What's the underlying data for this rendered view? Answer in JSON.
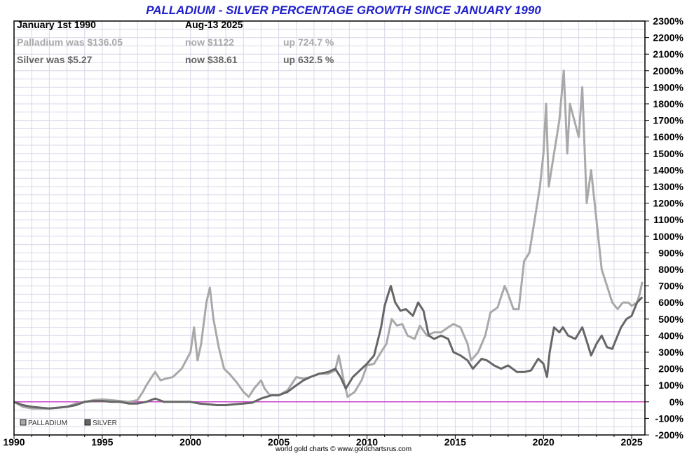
{
  "header": {
    "title": "PALLADIUM - SILVER PERCENTAGE GROWTH SINCE JANUARY 1990",
    "start_label": "January 1st 1990",
    "end_label": "Aug-13  2025",
    "rows": [
      {
        "was": "Palladium was $136.05",
        "now": "now $1122",
        "up": "up 724.7 %",
        "color": "#a9a9a9"
      },
      {
        "was": "Silver was $5.27",
        "now": "now $38.61",
        "up": "up 632.5 %",
        "color": "#666666"
      }
    ]
  },
  "credit": "world gold charts © www.goldchartsrus.com",
  "colors": {
    "title": "#1f1fcc",
    "palladium": "#a9a9a9",
    "silver": "#666666",
    "zero_line": "#cc44cc",
    "grid": "#d8d8ea",
    "frame": "#000000"
  },
  "chart_data": {
    "type": "line",
    "title": "PALLADIUM - SILVER PERCENTAGE GROWTH SINCE JANUARY 1990",
    "xlabel": "",
    "ylabel": "",
    "xlim": [
      1990,
      2025.75
    ],
    "ylim": [
      -200,
      2300
    ],
    "x_ticks": [
      {
        "value": 1990,
        "label": "1990"
      },
      {
        "value": 1995,
        "label": "1995"
      },
      {
        "value": 2000,
        "label": "2000"
      },
      {
        "value": 2005,
        "label": "2005"
      },
      {
        "value": 2010,
        "label": "2010"
      },
      {
        "value": 2015,
        "label": "2015"
      },
      {
        "value": 2020,
        "label": "2020"
      },
      {
        "value": 2025,
        "label": "2025"
      }
    ],
    "y_ticks": [
      {
        "value": 2300,
        "label": "2300%"
      },
      {
        "value": 2200,
        "label": "2200%"
      },
      {
        "value": 2100,
        "label": "2100%"
      },
      {
        "value": 2000,
        "label": "2000%"
      },
      {
        "value": 1900,
        "label": "1900%"
      },
      {
        "value": 1800,
        "label": "1800%"
      },
      {
        "value": 1700,
        "label": "1700%"
      },
      {
        "value": 1600,
        "label": "1600%"
      },
      {
        "value": 1500,
        "label": "1500%"
      },
      {
        "value": 1400,
        "label": "1400%"
      },
      {
        "value": 1300,
        "label": "1300%"
      },
      {
        "value": 1200,
        "label": "1200%"
      },
      {
        "value": 1100,
        "label": "1100%"
      },
      {
        "value": 1000,
        "label": "1000%"
      },
      {
        "value": 900,
        "label": "900%"
      },
      {
        "value": 800,
        "label": "800%"
      },
      {
        "value": 700,
        "label": "700%"
      },
      {
        "value": 600,
        "label": "600%"
      },
      {
        "value": 500,
        "label": "500%"
      },
      {
        "value": 400,
        "label": "400%"
      },
      {
        "value": 300,
        "label": "300%"
      },
      {
        "value": 200,
        "label": "200%"
      },
      {
        "value": 100,
        "label": "100%"
      },
      {
        "value": 0,
        "label": "0%"
      },
      {
        "value": -100,
        "label": "-100%"
      },
      {
        "value": -200,
        "label": "-200%"
      }
    ],
    "grid": true,
    "legend_position": "bottom-left",
    "zero_line": 0,
    "series": [
      {
        "name": "PALLADIUM",
        "color": "#a9a9a9",
        "x": [
          1990.0,
          1990.5,
          1991.0,
          1991.5,
          1992.0,
          1992.5,
          1993.0,
          1993.5,
          1994.0,
          1994.5,
          1995.0,
          1995.5,
          1996.0,
          1996.5,
          1997.0,
          1997.3,
          1997.5,
          1997.8,
          1998.0,
          1998.3,
          1998.6,
          1999.0,
          1999.5,
          2000.0,
          2000.2,
          2000.4,
          2000.6,
          2000.9,
          2001.1,
          2001.3,
          2001.6,
          2001.9,
          2002.2,
          2002.6,
          2003.0,
          2003.3,
          2003.6,
          2004.0,
          2004.2,
          2004.5,
          2005.0,
          2005.5,
          2006.0,
          2006.4,
          2006.8,
          2007.3,
          2007.8,
          2008.2,
          2008.4,
          2008.7,
          2008.9,
          2009.3,
          2009.7,
          2010.0,
          2010.4,
          2010.8,
          2011.1,
          2011.4,
          2011.7,
          2012.0,
          2012.3,
          2012.7,
          2013.0,
          2013.4,
          2013.8,
          2014.2,
          2014.6,
          2014.9,
          2015.3,
          2015.7,
          2015.9,
          2016.3,
          2016.7,
          2017.0,
          2017.4,
          2017.8,
          2018.0,
          2018.3,
          2018.6,
          2018.9,
          2019.2,
          2019.5,
          2019.8,
          2020.0,
          2020.15,
          2020.3,
          2020.6,
          2020.9,
          2021.15,
          2021.35,
          2021.5,
          2021.75,
          2022.0,
          2022.2,
          2022.45,
          2022.7,
          2023.0,
          2023.3,
          2023.6,
          2023.9,
          2024.2,
          2024.5,
          2024.8,
          2025.0,
          2025.3,
          2025.45,
          2025.6
        ],
        "values": [
          0,
          -30,
          -40,
          -40,
          -40,
          -35,
          -30,
          -10,
          0,
          10,
          15,
          10,
          5,
          0,
          10,
          60,
          100,
          150,
          180,
          130,
          140,
          150,
          200,
          300,
          450,
          250,
          350,
          600,
          690,
          500,
          330,
          200,
          170,
          120,
          60,
          30,
          80,
          130,
          80,
          40,
          40,
          70,
          150,
          140,
          150,
          170,
          170,
          190,
          280,
          120,
          30,
          60,
          130,
          220,
          230,
          300,
          350,
          500,
          460,
          470,
          400,
          380,
          460,
          400,
          420,
          420,
          450,
          470,
          450,
          350,
          250,
          300,
          400,
          540,
          570,
          700,
          650,
          560,
          560,
          850,
          900,
          1100,
          1300,
          1500,
          1800,
          1300,
          1500,
          1700,
          2000,
          1500,
          1800,
          1700,
          1600,
          1900,
          1200,
          1400,
          1100,
          800,
          700,
          600,
          560,
          600,
          600,
          580,
          600,
          650,
          725
        ]
      },
      {
        "name": "SILVER",
        "color": "#666666",
        "x": [
          1990.0,
          1990.5,
          1991.0,
          1991.5,
          1992.0,
          1992.5,
          1993.0,
          1993.5,
          1994.0,
          1994.5,
          1995.0,
          1995.5,
          1996.0,
          1996.5,
          1997.0,
          1997.5,
          1998.0,
          1998.5,
          1999.0,
          1999.5,
          2000.0,
          2000.5,
          2001.0,
          2001.5,
          2002.0,
          2002.5,
          2003.0,
          2003.5,
          2004.0,
          2004.3,
          2004.6,
          2005.0,
          2005.5,
          2006.0,
          2006.4,
          2006.8,
          2007.3,
          2007.8,
          2008.2,
          2008.5,
          2008.8,
          2009.2,
          2009.7,
          2010.0,
          2010.4,
          2010.8,
          2011.0,
          2011.2,
          2011.35,
          2011.6,
          2011.9,
          2012.2,
          2012.6,
          2012.9,
          2013.2,
          2013.5,
          2013.8,
          2014.2,
          2014.6,
          2014.9,
          2015.3,
          2015.7,
          2016.0,
          2016.5,
          2016.8,
          2017.2,
          2017.6,
          2018.0,
          2018.5,
          2018.9,
          2019.3,
          2019.7,
          2020.0,
          2020.2,
          2020.35,
          2020.6,
          2020.9,
          2021.1,
          2021.4,
          2021.8,
          2022.2,
          2022.5,
          2022.7,
          2023.0,
          2023.3,
          2023.6,
          2023.9,
          2024.2,
          2024.4,
          2024.7,
          2025.0,
          2025.3,
          2025.6
        ],
        "values": [
          0,
          -20,
          -30,
          -35,
          -40,
          -35,
          -30,
          -20,
          0,
          5,
          5,
          0,
          0,
          -10,
          -10,
          0,
          20,
          0,
          0,
          0,
          0,
          -10,
          -15,
          -20,
          -20,
          -15,
          -10,
          -5,
          20,
          30,
          40,
          40,
          60,
          100,
          130,
          150,
          170,
          180,
          200,
          150,
          80,
          150,
          200,
          230,
          280,
          450,
          580,
          650,
          700,
          600,
          550,
          560,
          520,
          600,
          550,
          400,
          380,
          400,
          380,
          300,
          280,
          250,
          200,
          260,
          250,
          220,
          200,
          220,
          180,
          180,
          190,
          260,
          230,
          150,
          300,
          450,
          420,
          450,
          400,
          380,
          450,
          350,
          280,
          350,
          400,
          330,
          320,
          400,
          450,
          500,
          520,
          600,
          632
        ]
      }
    ]
  }
}
